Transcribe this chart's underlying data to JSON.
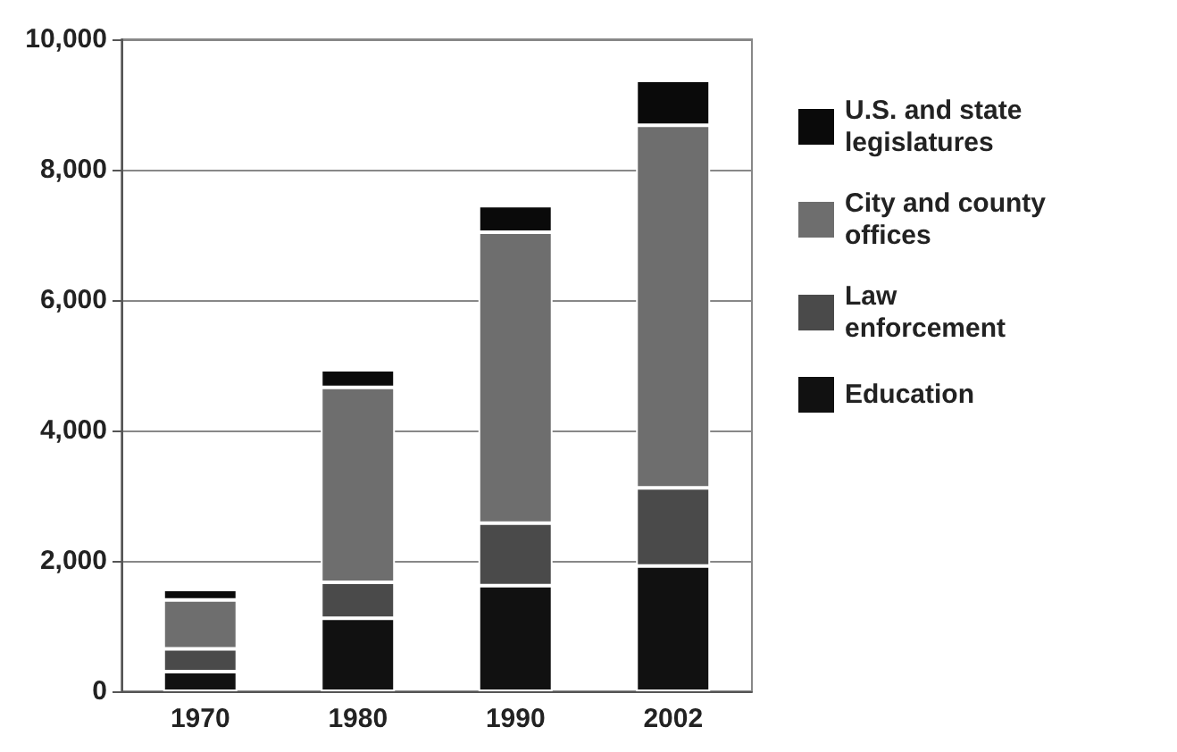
{
  "chart_data": {
    "type": "bar",
    "stacked": true,
    "categories": [
      "1970",
      "1980",
      "1990",
      "2002"
    ],
    "series": [
      {
        "name": "Education",
        "color": "#111111",
        "values": [
          300,
          1120,
          1620,
          1920
        ]
      },
      {
        "name": "Law enforcement",
        "color": "#4a4a4a",
        "values": [
          350,
          550,
          960,
          1200
        ]
      },
      {
        "name": "City and county offices",
        "color": "#6e6e6e",
        "values": [
          750,
          2990,
          4460,
          5560
        ]
      },
      {
        "name": "U.S. and state legislatures",
        "color": "#0a0a0a",
        "values": [
          160,
          270,
          410,
          690
        ]
      }
    ],
    "ylim": [
      0,
      10000
    ],
    "yticks": [
      0,
      {
        "value": 2000,
        "label": "2,000"
      },
      {
        "value": 4000,
        "label": "4,000"
      },
      {
        "value": 6000,
        "label": "6,000"
      },
      {
        "value": 8000,
        "label": "8,000"
      },
      {
        "value": 10000,
        "label": "10,000"
      }
    ],
    "grid": "y",
    "legend": "right"
  }
}
